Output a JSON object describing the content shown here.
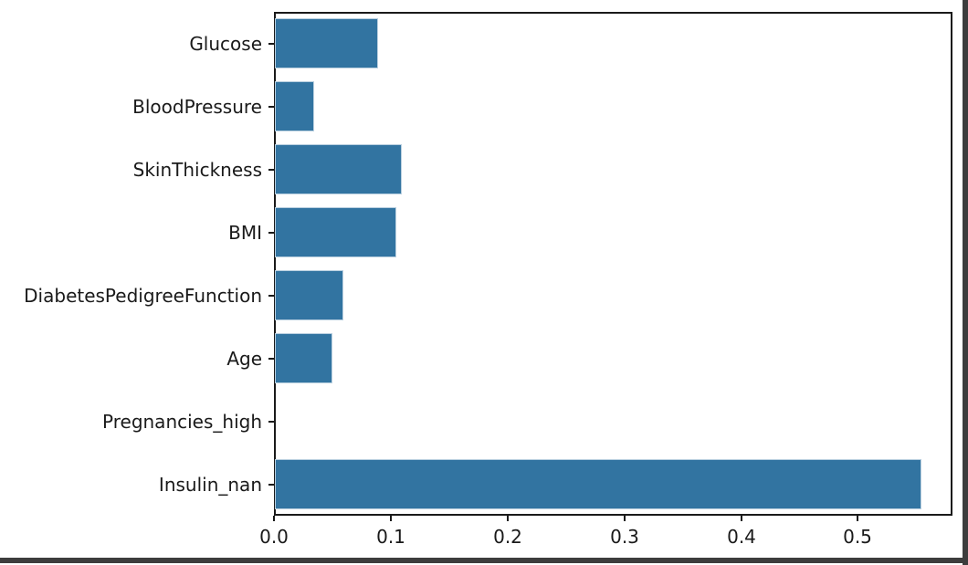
{
  "chart_data": {
    "type": "bar",
    "orientation": "horizontal",
    "title": "",
    "xlabel": "",
    "ylabel": "",
    "categories": [
      "Glucose",
      "BloodPressure",
      "SkinThickness",
      "BMI",
      "DiabetesPedigreeFunction",
      "Age",
      "Pregnancies_high",
      "Insulin_nan"
    ],
    "values": [
      0.088,
      0.034,
      0.109,
      0.104,
      0.059,
      0.049,
      0.0,
      0.554
    ],
    "xlim": [
      0,
      0.581
    ],
    "x_tick_values": [
      0.0,
      0.1,
      0.2,
      0.3,
      0.4,
      0.5
    ],
    "x_tick_labels": [
      "0.0",
      "0.1",
      "0.2",
      "0.3",
      "0.4",
      "0.5"
    ],
    "grid": false,
    "legend": null,
    "colors": {
      "bar": "#3274a1",
      "bar_edge": "#b9cfdf",
      "spine": "#1a1a1a",
      "text": "#1a1a1a",
      "frame_edge": "#3d3d3d",
      "background": "#ffffff"
    }
  }
}
